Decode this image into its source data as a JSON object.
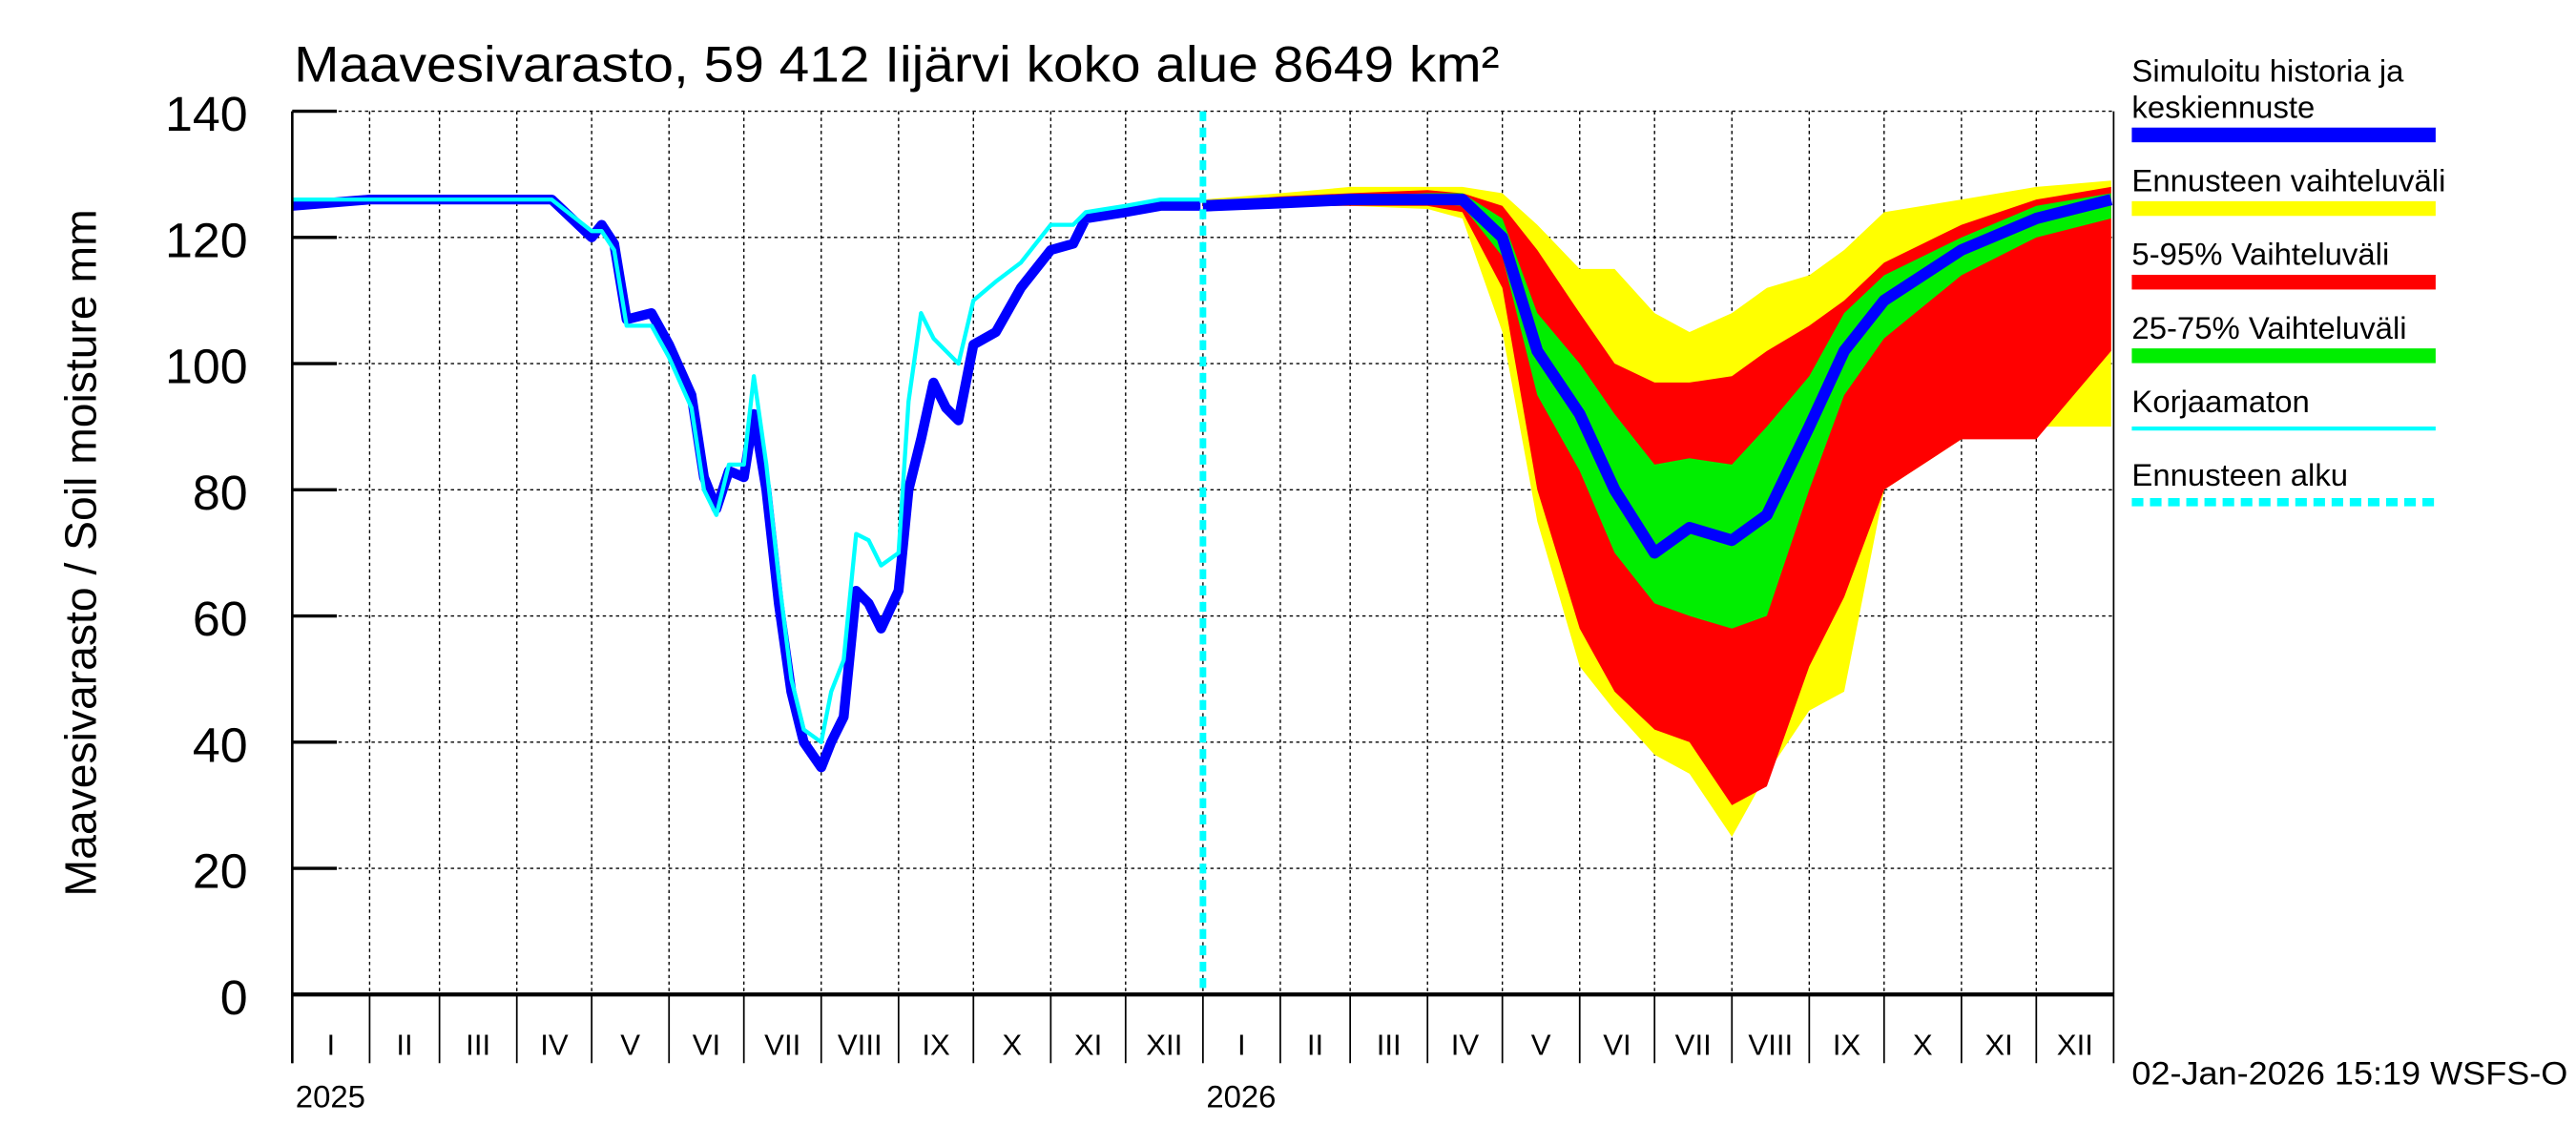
{
  "chart_data": {
    "type": "area",
    "title": "Maavesivarasto, 59 412 Iijärvi koko alue 8649 km²",
    "ylabel": "Maavesivarasto / Soil moisture   mm",
    "ylim": [
      0,
      140
    ],
    "yticks": [
      "0",
      "20",
      "40",
      "60",
      "80",
      "100",
      "120",
      "140"
    ],
    "xlim": [
      "2025-01-01",
      "2026-12-31"
    ],
    "month_labels": [
      "I",
      "II",
      "III",
      "IV",
      "V",
      "VI",
      "VII",
      "VIII",
      "IX",
      "X",
      "XI",
      "XII"
    ],
    "year_labels": [
      "2025",
      "2026"
    ],
    "grid": true,
    "legend_position": "right",
    "forecast_start": "2026-01-01",
    "footer": "02-Jan-2026 15:19 WSFS-O",
    "legend": [
      {
        "label": "Simuloitu historia ja keskiennuste",
        "color": "#0000ff",
        "style": "thick"
      },
      {
        "label": "Ennusteen vaihteluväli",
        "color": "#ffff00",
        "style": "band"
      },
      {
        "label": "5-95% Vaihteluväli",
        "color": "#ff0000",
        "style": "band"
      },
      {
        "label": "25-75% Vaihteluväli",
        "color": "#00ee00",
        "style": "band"
      },
      {
        "label": "Korjaamaton",
        "color": "#00ffff",
        "style": "thin"
      },
      {
        "label": "Ennusteen alku",
        "color": "#00ffff",
        "style": "dashed"
      }
    ],
    "history": {
      "name": "Simuloitu historia ja keskiennuste",
      "x": [
        "2025-01-01",
        "2025-02-01",
        "2025-03-01",
        "2025-04-01",
        "2025-04-15",
        "2025-05-01",
        "2025-05-05",
        "2025-05-10",
        "2025-05-15",
        "2025-05-25",
        "2025-06-01",
        "2025-06-10",
        "2025-06-15",
        "2025-06-20",
        "2025-06-25",
        "2025-07-01",
        "2025-07-05",
        "2025-07-10",
        "2025-07-15",
        "2025-07-20",
        "2025-07-25",
        "2025-08-01",
        "2025-08-05",
        "2025-08-10",
        "2025-08-15",
        "2025-08-20",
        "2025-08-25",
        "2025-09-01",
        "2025-09-05",
        "2025-09-10",
        "2025-09-15",
        "2025-09-20",
        "2025-09-25",
        "2025-10-01",
        "2025-10-10",
        "2025-10-20",
        "2025-11-01",
        "2025-11-10",
        "2025-11-15",
        "2025-12-01",
        "2025-12-15",
        "2025-12-31"
      ],
      "y": [
        125,
        126,
        126,
        126,
        126,
        120,
        122,
        119,
        107,
        108,
        103,
        95,
        82,
        77,
        83,
        82,
        92,
        80,
        62,
        48,
        40,
        36,
        40,
        44,
        64,
        62,
        58,
        64,
        80,
        88,
        97,
        93,
        91,
        103,
        105,
        112,
        118,
        119,
        123,
        124,
        125,
        125
      ]
    },
    "uncorrected": {
      "name": "Korjaamaton",
      "x": [
        "2025-01-01",
        "2025-02-01",
        "2025-03-01",
        "2025-04-01",
        "2025-04-15",
        "2025-05-01",
        "2025-05-05",
        "2025-05-10",
        "2025-05-15",
        "2025-05-25",
        "2025-06-01",
        "2025-06-10",
        "2025-06-15",
        "2025-06-20",
        "2025-06-25",
        "2025-07-01",
        "2025-07-05",
        "2025-07-10",
        "2025-07-15",
        "2025-07-20",
        "2025-07-25",
        "2025-08-01",
        "2025-08-05",
        "2025-08-10",
        "2025-08-15",
        "2025-08-20",
        "2025-08-25",
        "2025-09-01",
        "2025-09-05",
        "2025-09-10",
        "2025-09-15",
        "2025-09-20",
        "2025-09-25",
        "2025-10-01",
        "2025-10-10",
        "2025-10-20",
        "2025-11-01",
        "2025-11-10",
        "2025-11-15",
        "2025-12-01",
        "2025-12-15",
        "2025-12-31"
      ],
      "y": [
        126,
        126,
        126,
        126,
        126,
        121,
        121,
        118,
        106,
        106,
        101,
        93,
        80,
        76,
        84,
        84,
        98,
        84,
        66,
        50,
        42,
        40,
        48,
        53,
        73,
        72,
        68,
        70,
        94,
        108,
        104,
        102,
        100,
        110,
        113,
        116,
        122,
        122,
        124,
        125,
        126,
        126
      ]
    },
    "forecast": {
      "x": [
        "2026-01-01",
        "2026-02-01",
        "2026-03-01",
        "2026-04-01",
        "2026-04-15",
        "2026-05-01",
        "2026-05-15",
        "2026-06-01",
        "2026-06-15",
        "2026-07-01",
        "2026-07-15",
        "2026-08-01",
        "2026-08-15",
        "2026-09-01",
        "2026-09-15",
        "2026-10-01",
        "2026-11-01",
        "2026-12-01",
        "2026-12-31"
      ],
      "median": [
        125,
        125.5,
        126,
        126,
        126,
        120,
        102,
        92,
        80,
        70,
        74,
        72,
        76,
        90,
        102,
        110,
        118,
        123,
        126
      ],
      "p25": [
        125,
        125,
        125.5,
        125.5,
        125,
        117,
        95,
        83,
        70,
        62,
        60,
        58,
        60,
        80,
        95,
        104,
        114,
        120,
        123
      ],
      "p75": [
        125,
        126,
        126.5,
        127,
        127,
        123,
        108,
        100,
        92,
        84,
        85,
        84,
        90,
        98,
        108,
        114,
        120,
        125,
        127
      ],
      "p5": [
        124.5,
        125,
        125,
        125,
        124,
        112,
        80,
        58,
        48,
        42,
        40,
        30,
        33,
        52,
        63,
        80,
        88,
        88,
        102
      ],
      "p95": [
        125.5,
        126.5,
        127,
        127.5,
        127,
        125,
        118,
        108,
        100,
        97,
        97,
        98,
        102,
        106,
        110,
        116,
        122,
        126,
        128
      ],
      "min": [
        124.5,
        125,
        125,
        124.5,
        123,
        105,
        75,
        52,
        45,
        38,
        35,
        25,
        35,
        45,
        48,
        80,
        88,
        90,
        90
      ],
      "max": [
        126,
        127,
        128,
        128,
        128,
        127,
        122,
        115,
        115,
        108,
        105,
        108,
        112,
        114,
        118,
        124,
        126,
        128,
        129
      ]
    }
  }
}
